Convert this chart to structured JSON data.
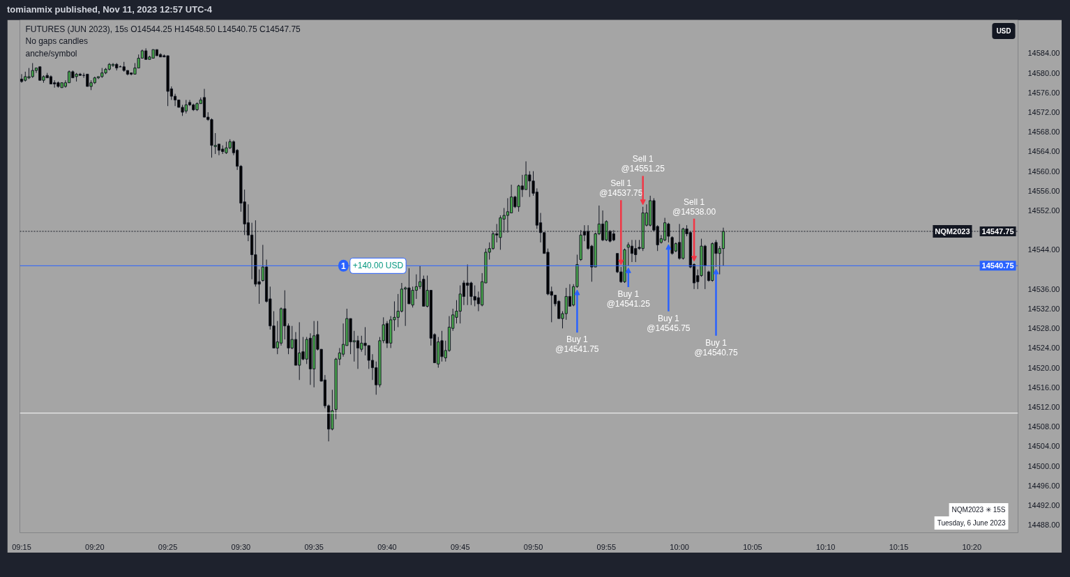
{
  "chart_data": {
    "type": "candlestick",
    "title": "FUTURES (JUN 2023), 15s O14544.25 H14548.50 L14540.75 C14547.75",
    "x": [
      9.25,
      9.25417,
      9.25833,
      9.2625,
      9.26667,
      9.27083,
      9.275,
      9.27917,
      9.28333,
      9.2875,
      9.29167,
      9.29583,
      9.3,
      9.30417,
      9.30833,
      9.3125,
      9.31667,
      9.32083,
      9.325,
      9.32917,
      9.33333,
      9.3375,
      9.34167,
      9.34583,
      9.35,
      9.35417,
      9.35833,
      9.3625,
      9.36667,
      9.37083,
      9.375,
      9.37917,
      9.38333,
      9.3875,
      9.39167,
      9.39583,
      9.4,
      9.40417,
      9.40833,
      9.4125,
      9.41667,
      9.42083,
      9.425,
      9.42917,
      9.43333,
      9.4375,
      9.44167,
      9.44583,
      9.45,
      9.45417,
      9.45833,
      9.4625,
      9.46667,
      9.47083,
      9.475,
      9.47917,
      9.48333,
      9.4875,
      9.49167,
      9.49583,
      9.5,
      9.50417,
      9.50833,
      9.5125,
      9.51667,
      9.52083,
      9.525,
      9.52917,
      9.53333,
      9.5375,
      9.54167,
      9.54583,
      9.55,
      9.55417,
      9.55833,
      9.5625,
      9.56667,
      9.57083,
      9.575,
      9.57917,
      9.58333,
      9.5875,
      9.59167,
      9.59583,
      9.6,
      9.60417,
      9.60833,
      9.6125,
      9.61667,
      9.62083,
      9.625,
      9.62917,
      9.63333,
      9.6375,
      9.64167,
      9.64583,
      9.65,
      9.65417,
      9.65833,
      9.6625,
      9.66667,
      9.67083,
      9.675,
      9.67917,
      9.68333,
      9.6875,
      9.69167,
      9.69583,
      9.7,
      9.70417,
      9.70833,
      9.7125,
      9.71667,
      9.72083,
      9.725,
      9.72917,
      9.73333,
      9.7375,
      9.74167,
      9.74583,
      9.75,
      9.75417,
      9.75833,
      9.7625,
      9.76667,
      9.77083,
      9.775,
      9.77917,
      9.78333,
      9.7875,
      9.79167,
      9.79583,
      9.8,
      9.80417,
      9.80833,
      9.8125,
      9.81667,
      9.82083,
      9.825,
      9.82917,
      9.83333,
      9.8375,
      9.84167,
      9.84583,
      9.85,
      9.85417,
      9.85833,
      9.8625,
      9.86667,
      9.87083,
      9.875,
      9.87917,
      9.88333,
      9.8875,
      9.89167,
      9.89583,
      9.9,
      9.90417,
      9.90833,
      9.9125,
      9.91667,
      9.92083,
      9.925,
      9.92917,
      9.93333,
      9.9375,
      9.94167,
      9.94583,
      9.95,
      9.95417,
      9.95833,
      9.9625,
      9.96667,
      9.97083,
      9.975,
      9.97917,
      9.98333,
      9.9875,
      9.99167,
      9.99583,
      10.0,
      10.00417,
      10.00833,
      10.0125,
      10.01667,
      10.02083,
      10.025,
      10.02917,
      10.03333,
      10.0375,
      10.04167,
      10.04583,
      10.05
    ],
    "ohlc": [
      [
        14578.75,
        14579.75,
        14578.0,
        14578.25
      ],
      [
        14578.5,
        14580.25,
        14578.25,
        14579.25
      ],
      [
        14579.0,
        14581.0,
        14578.75,
        14579.25
      ],
      [
        14579.25,
        14582.0,
        14579.0,
        14580.5
      ],
      [
        14580.5,
        14581.0,
        14580.0,
        14581.0
      ],
      [
        14581.25,
        14581.25,
        14578.5,
        14578.5
      ],
      [
        14578.5,
        14579.5,
        14578.0,
        14579.25
      ],
      [
        14579.5,
        14580.0,
        14579.0,
        14579.0
      ],
      [
        14579.25,
        14579.5,
        14577.75,
        14577.75
      ],
      [
        14578.0,
        14578.5,
        14577.0,
        14577.75
      ],
      [
        14578.0,
        14578.25,
        14577.0,
        14577.25
      ],
      [
        14577.0,
        14578.0,
        14577.0,
        14578.0
      ],
      [
        14577.25,
        14578.5,
        14577.0,
        14578.0
      ],
      [
        14578.0,
        14580.5,
        14578.0,
        14580.25
      ],
      [
        14580.25,
        14580.5,
        14579.0,
        14579.0
      ],
      [
        14579.25,
        14580.0,
        14578.25,
        14579.75
      ],
      [
        14579.75,
        14580.0,
        14579.5,
        14579.5
      ],
      [
        14579.5,
        14580.0,
        14579.0,
        14579.5
      ],
      [
        14579.75,
        14579.75,
        14577.25,
        14577.25
      ],
      [
        14577.25,
        14578.5,
        14576.5,
        14578.0
      ],
      [
        14578.0,
        14579.25,
        14577.75,
        14579.0
      ],
      [
        14579.0,
        14579.25,
        14578.75,
        14579.25
      ],
      [
        14579.25,
        14581.0,
        14579.0,
        14580.0
      ],
      [
        14580.0,
        14581.0,
        14579.75,
        14580.75
      ],
      [
        14580.75,
        14582.0,
        14580.5,
        14581.75
      ],
      [
        14581.5,
        14582.0,
        14581.25,
        14581.75
      ],
      [
        14581.75,
        14582.0,
        14580.5,
        14581.0
      ],
      [
        14581.25,
        14581.5,
        14581.25,
        14581.25
      ],
      [
        14581.25,
        14582.25,
        14580.25,
        14580.5
      ],
      [
        14580.5,
        14580.5,
        14579.5,
        14579.75
      ],
      [
        14580.0,
        14580.0,
        14579.5,
        14579.75
      ],
      [
        14579.75,
        14582.0,
        14579.75,
        14581.0
      ],
      [
        14581.0,
        14583.75,
        14581.0,
        14583.0
      ],
      [
        14583.0,
        14584.75,
        14583.0,
        14584.5
      ],
      [
        14584.5,
        14585.0,
        14582.75,
        14582.75
      ],
      [
        14582.75,
        14583.5,
        14582.75,
        14583.25
      ],
      [
        14583.0,
        14584.75,
        14583.0,
        14584.75
      ],
      [
        14584.75,
        14584.75,
        14583.5,
        14583.5
      ],
      [
        14583.75,
        14584.0,
        14583.25,
        14583.25
      ],
      [
        14583.5,
        14583.75,
        14583.25,
        14583.25
      ],
      [
        14583.5,
        14583.5,
        14573.25,
        14576.25
      ],
      [
        14576.75,
        14577.25,
        14574.5,
        14575.25
      ],
      [
        14575.25,
        14575.75,
        14573.25,
        14574.5
      ],
      [
        14574.5,
        14574.5,
        14573.0,
        14573.0
      ],
      [
        14573.0,
        14573.5,
        14571.25,
        14572.0
      ],
      [
        14572.25,
        14574.5,
        14571.75,
        14573.5
      ],
      [
        14574.0,
        14574.5,
        14573.25,
        14573.5
      ],
      [
        14573.5,
        14573.75,
        14572.25,
        14572.5
      ],
      [
        14572.5,
        14574.0,
        14572.25,
        14573.75
      ],
      [
        14573.75,
        14575.0,
        14573.75,
        14574.5
      ],
      [
        14575.0,
        14576.75,
        14571.0,
        14571.0
      ],
      [
        14571.0,
        14572.0,
        14570.25,
        14570.5
      ],
      [
        14570.5,
        14570.75,
        14562.75,
        14565.25
      ],
      [
        14565.0,
        14567.75,
        14563.5,
        14565.25
      ],
      [
        14565.5,
        14565.5,
        14563.25,
        14564.25
      ],
      [
        14564.5,
        14565.25,
        14563.5,
        14564.0
      ],
      [
        14563.75,
        14566.0,
        14563.5,
        14564.75
      ],
      [
        14564.75,
        14566.5,
        14564.5,
        14566.0
      ],
      [
        14566.0,
        14566.25,
        14563.25,
        14563.75
      ],
      [
        14564.25,
        14564.5,
        14560.25,
        14561.0
      ],
      [
        14561.0,
        14561.25,
        14551.75,
        14553.5
      ],
      [
        14553.75,
        14556.25,
        14547.0,
        14549.25
      ],
      [
        14549.5,
        14553.25,
        14545.75,
        14547.0
      ],
      [
        14547.0,
        14549.5,
        14538.0,
        14543.0
      ],
      [
        14543.0,
        14550.0,
        14536.5,
        14537.0
      ],
      [
        14537.5,
        14540.0,
        14533.0,
        14537.0
      ],
      [
        14537.75,
        14545.0,
        14537.5,
        14540.5
      ],
      [
        14540.5,
        14542.0,
        14533.25,
        14533.5
      ],
      [
        14534.0,
        14536.5,
        14527.75,
        14528.5
      ],
      [
        14528.5,
        14531.5,
        14524.0,
        14524.0
      ],
      [
        14524.0,
        14529.5,
        14522.75,
        14525.25
      ],
      [
        14525.0,
        14532.25,
        14524.5,
        14532.0
      ],
      [
        14532.0,
        14535.75,
        14525.75,
        14528.5
      ],
      [
        14528.5,
        14529.0,
        14522.75,
        14524.0
      ],
      [
        14524.0,
        14528.5,
        14523.75,
        14525.75
      ],
      [
        14525.75,
        14527.25,
        14520.5,
        14520.5
      ],
      [
        14520.5,
        14529.25,
        14517.5,
        14523.0
      ],
      [
        14523.25,
        14526.25,
        14521.5,
        14521.75
      ],
      [
        14521.75,
        14526.25,
        14520.75,
        14525.75
      ],
      [
        14526.0,
        14527.0,
        14516.5,
        14519.75
      ],
      [
        14519.75,
        14529.5,
        14516.0,
        14526.5
      ],
      [
        14526.75,
        14529.5,
        14523.5,
        14523.75
      ],
      [
        14523.75,
        14523.75,
        14517.25,
        14517.25
      ],
      [
        14517.5,
        14518.5,
        14511.75,
        14512.25
      ],
      [
        14512.25,
        14512.5,
        14505.0,
        14507.5
      ],
      [
        14507.5,
        14515.5,
        14507.25,
        14511.25
      ],
      [
        14511.5,
        14522.0,
        14509.5,
        14521.75
      ],
      [
        14521.75,
        14524.0,
        14520.5,
        14523.0
      ],
      [
        14522.75,
        14529.0,
        14522.25,
        14524.75
      ],
      [
        14524.5,
        14532.0,
        14524.5,
        14530.0
      ],
      [
        14530.0,
        14530.0,
        14522.75,
        14525.25
      ],
      [
        14525.25,
        14527.5,
        14521.25,
        14525.5
      ],
      [
        14525.5,
        14526.5,
        14519.75,
        14524.0
      ],
      [
        14523.75,
        14526.5,
        14523.25,
        14525.0
      ],
      [
        14525.0,
        14528.25,
        14522.5,
        14524.5
      ],
      [
        14524.5,
        14524.5,
        14519.75,
        14521.5
      ],
      [
        14521.5,
        14522.75,
        14517.5,
        14520.0
      ],
      [
        14520.0,
        14521.25,
        14514.5,
        14516.5
      ],
      [
        14516.5,
        14526.25,
        14516.0,
        14525.5
      ],
      [
        14525.5,
        14530.25,
        14525.0,
        14528.75
      ],
      [
        14529.0,
        14529.5,
        14524.0,
        14525.0
      ],
      [
        14525.0,
        14530.5,
        14524.0,
        14529.75
      ],
      [
        14529.75,
        14533.5,
        14527.5,
        14530.25
      ],
      [
        14530.25,
        14535.0,
        14528.25,
        14531.5
      ],
      [
        14531.5,
        14537.25,
        14531.25,
        14536.0
      ],
      [
        14536.0,
        14536.5,
        14528.5,
        14536.25
      ],
      [
        14536.25,
        14540.25,
        14533.0,
        14533.0
      ],
      [
        14532.75,
        14536.5,
        14532.25,
        14535.75
      ],
      [
        14535.75,
        14539.0,
        14534.0,
        14536.5
      ],
      [
        14536.5,
        14540.75,
        14536.0,
        14537.5
      ],
      [
        14538.0,
        14538.75,
        14532.5,
        14532.5
      ],
      [
        14532.5,
        14538.75,
        14532.25,
        14535.75
      ],
      [
        14535.75,
        14535.75,
        14524.5,
        14526.0
      ],
      [
        14526.75,
        14527.0,
        14521.0,
        14521.0
      ],
      [
        14520.75,
        14526.25,
        14520.0,
        14525.25
      ],
      [
        14525.5,
        14527.5,
        14521.25,
        14522.25
      ],
      [
        14522.0,
        14525.5,
        14521.25,
        14523.5
      ],
      [
        14523.5,
        14530.5,
        14523.25,
        14528.25
      ],
      [
        14528.0,
        14532.0,
        14527.5,
        14530.75
      ],
      [
        14530.25,
        14533.75,
        14529.0,
        14531.5
      ],
      [
        14531.5,
        14536.75,
        14529.0,
        14535.0
      ],
      [
        14537.25,
        14537.75,
        14532.75,
        14534.5
      ],
      [
        14537.25,
        14541.0,
        14532.75,
        14536.75
      ],
      [
        14537.25,
        14537.5,
        14532.75,
        14534.5
      ],
      [
        14534.5,
        14536.75,
        14532.5,
        14533.75
      ],
      [
        14534.25,
        14535.5,
        14531.5,
        14533.0
      ],
      [
        14532.75,
        14539.25,
        14532.5,
        14537.5
      ],
      [
        14537.25,
        14544.25,
        14537.25,
        14543.5
      ],
      [
        14543.5,
        14545.5,
        14542.0,
        14544.25
      ],
      [
        14544.25,
        14547.75,
        14544.0,
        14547.25
      ],
      [
        14547.25,
        14549.25,
        14545.5,
        14547.0
      ],
      [
        14546.5,
        14551.0,
        14544.0,
        14550.5
      ],
      [
        14550.25,
        14552.5,
        14547.5,
        14551.0
      ],
      [
        14551.0,
        14554.5,
        14547.5,
        14551.75
      ],
      [
        14551.5,
        14557.25,
        14551.5,
        14554.75
      ],
      [
        14554.75,
        14555.0,
        14552.5,
        14552.75
      ],
      [
        14552.75,
        14557.25,
        14551.75,
        14557.0
      ],
      [
        14557.0,
        14559.25,
        14554.75,
        14556.25
      ],
      [
        14556.25,
        14562.0,
        14556.25,
        14559.25
      ],
      [
        14559.25,
        14560.0,
        14554.75,
        14558.0
      ],
      [
        14558.0,
        14560.0,
        14555.0,
        14555.5
      ],
      [
        14555.75,
        14556.5,
        14548.25,
        14549.0
      ],
      [
        14549.5,
        14551.5,
        14545.5,
        14547.5
      ],
      [
        14547.5,
        14547.5,
        14543.25,
        14543.25
      ],
      [
        14543.5,
        14544.25,
        14534.75,
        14535.0
      ],
      [
        14535.5,
        14536.5,
        14529.25,
        14534.75
      ],
      [
        14534.75,
        14534.75,
        14532.5,
        14533.0
      ],
      [
        14533.5,
        14533.75,
        14530.0,
        14530.0
      ],
      [
        14530.0,
        14531.5,
        14528.0,
        14531.0
      ],
      [
        14531.0,
        14536.25,
        14529.75,
        14534.5
      ],
      [
        14534.5,
        14537.0,
        14532.5,
        14532.5
      ],
      [
        14532.75,
        14537.0,
        14532.5,
        14536.5
      ],
      [
        14536.5,
        14543.0,
        14536.25,
        14541.0
      ],
      [
        14542.0,
        14548.0,
        14541.75,
        14547.0
      ],
      [
        14547.75,
        14549.0,
        14545.75,
        14547.0
      ],
      [
        14547.75,
        14549.0,
        14544.0,
        14544.25
      ],
      [
        14544.75,
        14545.0,
        14537.5,
        14540.5
      ],
      [
        14540.5,
        14547.5,
        14540.5,
        14547.25
      ],
      [
        14547.25,
        14553.0,
        14547.0,
        14549.25
      ],
      [
        14549.25,
        14552.0,
        14545.75,
        14546.0
      ],
      [
        14546.0,
        14550.0,
        14545.75,
        14549.75
      ],
      [
        14547.75,
        14548.0,
        14545.5,
        14545.75
      ],
      [
        14547.25,
        14548.0,
        14545.75,
        14546.0
      ],
      [
        14543.25,
        14543.25,
        14539.25,
        14539.5
      ],
      [
        14539.5,
        14540.5,
        14537.25,
        14537.5
      ],
      [
        14537.5,
        14544.25,
        14537.25,
        14544.0
      ],
      [
        14544.5,
        14545.5,
        14540.75,
        14545.0
      ],
      [
        14544.75,
        14546.0,
        14541.5,
        14543.25
      ],
      [
        14544.25,
        14546.0,
        14541.5,
        14543.0
      ],
      [
        14544.5,
        14546.0,
        14544.0,
        14544.25
      ],
      [
        14544.25,
        14552.75,
        14543.75,
        14551.5
      ],
      [
        14549.0,
        14553.25,
        14548.75,
        14551.5
      ],
      [
        14549.0,
        14555.0,
        14548.75,
        14554.0
      ],
      [
        14554.0,
        14554.5,
        14547.75,
        14548.0
      ],
      [
        14548.75,
        14549.0,
        14543.75,
        14545.0
      ],
      [
        14545.5,
        14547.0,
        14545.25,
        14546.25
      ],
      [
        14546.0,
        14550.5,
        14545.75,
        14549.5
      ],
      [
        14549.25,
        14549.5,
        14545.5,
        14546.75
      ],
      [
        14546.5,
        14546.75,
        14543.0,
        14543.25
      ],
      [
        14543.75,
        14545.5,
        14543.5,
        14545.25
      ],
      [
        14545.5,
        14549.25,
        14542.0,
        14542.25
      ],
      [
        14542.25,
        14548.5,
        14542.0,
        14548.25
      ],
      [
        14548.25,
        14549.0,
        14546.75,
        14547.25
      ],
      [
        14547.5,
        14547.75,
        14540.25,
        14540.5
      ],
      [
        14541.0,
        14541.25,
        14536.0,
        14537.25
      ],
      [
        14538.75,
        14540.0,
        14536.0,
        14537.5
      ],
      [
        14538.75,
        14546.25,
        14538.5,
        14544.75
      ],
      [
        14544.75,
        14545.0,
        14536.0,
        14540.75
      ],
      [
        14539.5,
        14539.75,
        14537.5,
        14537.75
      ],
      [
        14537.75,
        14545.5,
        14537.5,
        14545.25
      ],
      [
        14545.5,
        14546.0,
        14540.5,
        14543.25
      ],
      [
        14543.25,
        14544.75,
        14539.0,
        14544.25
      ],
      [
        14544.25,
        14548.5,
        14540.75,
        14547.75
      ]
    ],
    "xlim": [
      9.248,
      10.386
    ],
    "ylim": [
      14486.4,
      14590.8
    ],
    "xticks": [
      {
        "value": 9.25,
        "label": "09:15"
      },
      {
        "value": 9.33333,
        "label": "09:20"
      },
      {
        "value": 9.41667,
        "label": "09:25"
      },
      {
        "value": 9.5,
        "label": "09:30"
      },
      {
        "value": 9.58333,
        "label": "09:35"
      },
      {
        "value": 9.66667,
        "label": "09:40"
      },
      {
        "value": 9.75,
        "label": "09:45"
      },
      {
        "value": 9.83333,
        "label": "09:50"
      },
      {
        "value": 9.91667,
        "label": "09:55"
      },
      {
        "value": 10.0,
        "label": "10:00"
      },
      {
        "value": 10.08333,
        "label": "10:05"
      },
      {
        "value": 10.16667,
        "label": "10:10"
      },
      {
        "value": 10.25,
        "label": "10:15"
      },
      {
        "value": 10.33333,
        "label": "10:20"
      }
    ],
    "yticks": [
      {
        "value": 14488,
        "label": "14488.00"
      },
      {
        "value": 14492,
        "label": "14492.00"
      },
      {
        "value": 14496,
        "label": "14496.00"
      },
      {
        "value": 14500,
        "label": "14500.00"
      },
      {
        "value": 14504,
        "label": "14504.00"
      },
      {
        "value": 14508,
        "label": "14508.00"
      },
      {
        "value": 14512,
        "label": "14512.00"
      },
      {
        "value": 14516,
        "label": "14516.00"
      },
      {
        "value": 14520,
        "label": "14520.00"
      },
      {
        "value": 14524,
        "label": "14524.00"
      },
      {
        "value": 14528,
        "label": "14528.00"
      },
      {
        "value": 14532,
        "label": "14532.00"
      },
      {
        "value": 14536,
        "label": "14536.00"
      },
      {
        "value": 14544,
        "label": "14544.00"
      },
      {
        "value": 14552,
        "label": "14552.00"
      },
      {
        "value": 14556,
        "label": "14556.00"
      },
      {
        "value": 14560,
        "label": "14560.00"
      },
      {
        "value": 14564,
        "label": "14564.00"
      },
      {
        "value": 14568,
        "label": "14568.00"
      },
      {
        "value": 14572,
        "label": "14572.00"
      },
      {
        "value": 14576,
        "label": "14576.00"
      },
      {
        "value": 14580,
        "label": "14580.00"
      },
      {
        "value": 14584,
        "label": "14584.00"
      }
    ],
    "ref_lines": [
      {
        "axis": "y",
        "value": 14547.75,
        "label": "NQM2023",
        "color": "#131722",
        "line_style": "dotted"
      },
      {
        "axis": "y",
        "value": 14540.75,
        "label": "+140.00 USD",
        "color": "#2962ff",
        "line_style": "solid"
      },
      {
        "axis": "y",
        "value": 14510.75,
        "color": "#ffffff",
        "line_style": "solid"
      }
    ],
    "annotations": [
      "tomianmix published, Nov 11, 2023 12:57 UTC-4",
      "No gaps candles",
      "anche/symbol",
      "USD",
      "NQM2023 ✳ 15S",
      "Tuesday, 6 June 2023",
      "1",
      {
        "text": "14547.75",
        "x": 10.386,
        "y": 14547.75
      },
      {
        "text": "14540.75",
        "x": 10.386,
        "y": 14540.75
      },
      {
        "text": "Buy 1\n@14541.75",
        "x": 9.88333,
        "y": 14536.25
      },
      {
        "text": "Sell 1\n@14537.75",
        "x": 9.93333,
        "y": 14540.5
      },
      {
        "text": "Buy 1\n@14541.25",
        "x": 9.94167,
        "y": 14540.75
      },
      {
        "text": "Sell 1\n@14551.25",
        "x": 9.95833,
        "y": 14552.75
      },
      {
        "text": "Buy 1\n@14545.75",
        "x": 9.9875,
        "y": 14545.5
      },
      {
        "text": "Sell 1\n@14538.00",
        "x": 10.01667,
        "y": 14541.25
      },
      {
        "text": "Buy 1\n@14540.75",
        "x": 10.04167,
        "y": 14540.5
      }
    ]
  }
}
